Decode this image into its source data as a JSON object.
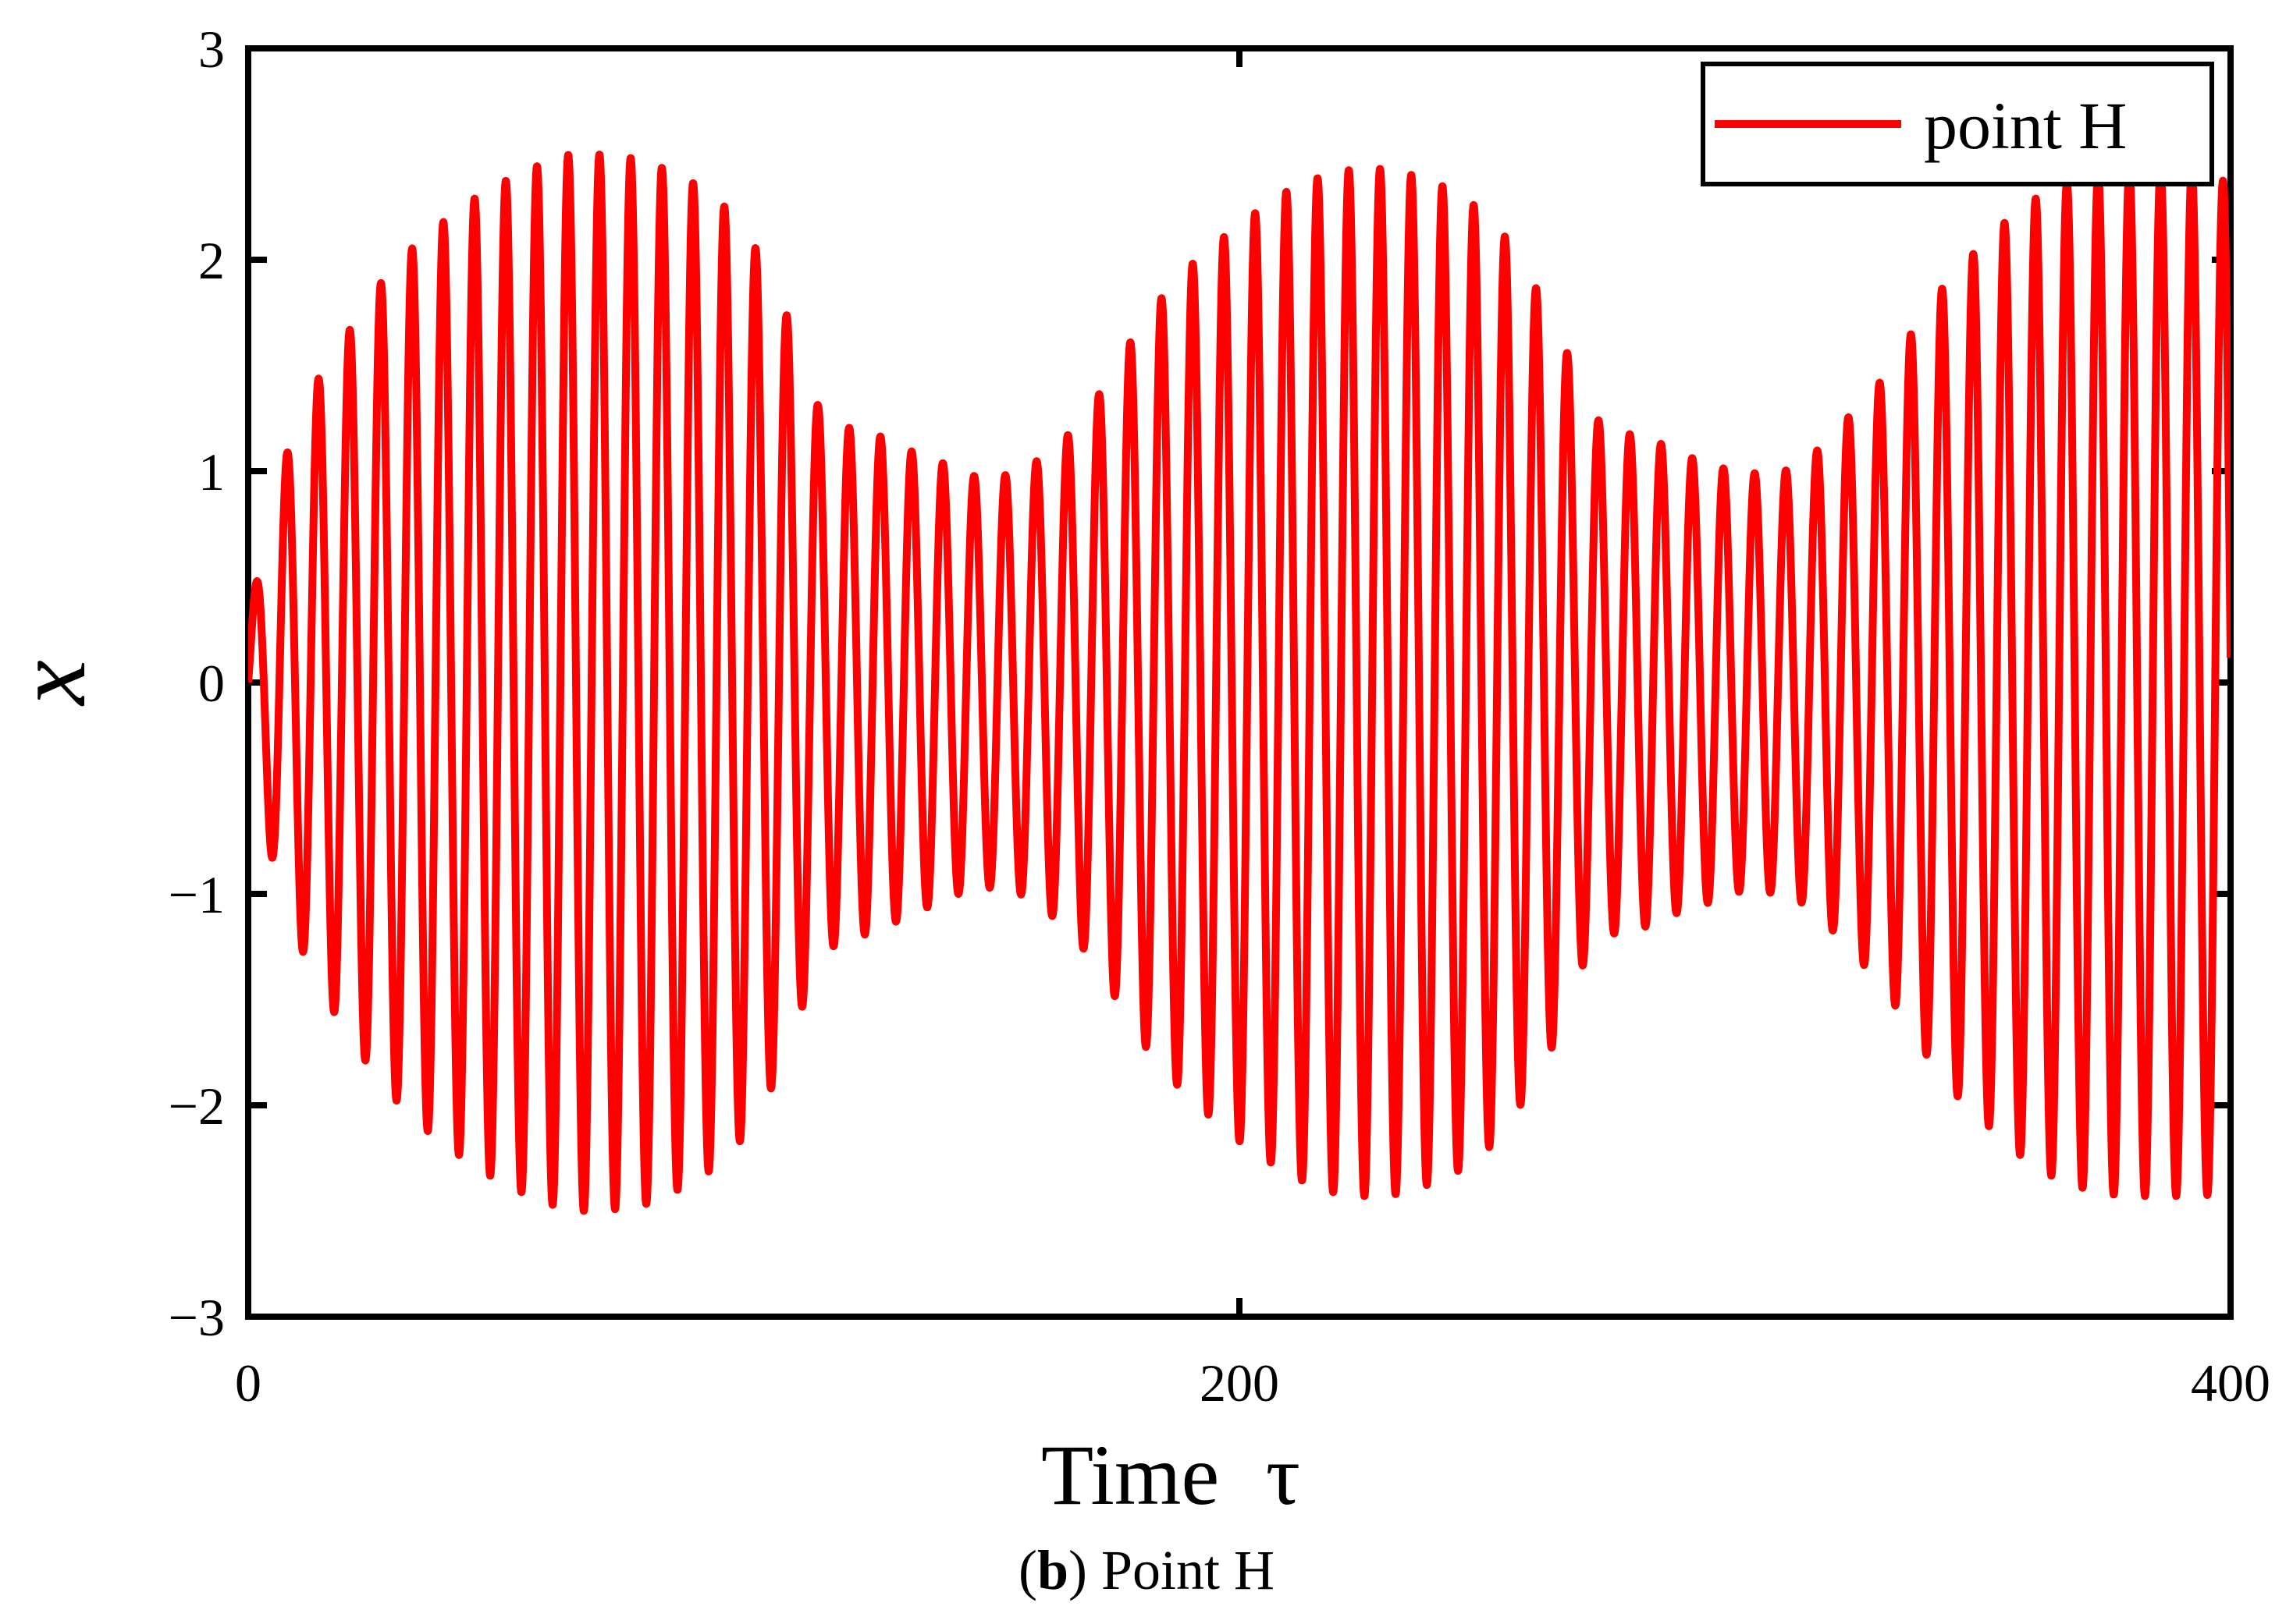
{
  "chart_data": {
    "type": "line",
    "title": "",
    "xlabel": "Time",
    "xlabel_symbol": "τ",
    "ylabel": "x",
    "xlim": [
      0,
      400
    ],
    "ylim": [
      -3,
      3
    ],
    "xticks": [
      0,
      200,
      400
    ],
    "yticks": [
      -3,
      -2,
      -1,
      0,
      1,
      2,
      3
    ],
    "xtick_labels": [
      "0",
      "200",
      "400"
    ],
    "ytick_labels": [
      "−3",
      "−2",
      "−1",
      "0",
      "1",
      "2",
      "3"
    ],
    "grid": false,
    "legend_position": "top-right",
    "series": [
      {
        "name": "point H",
        "color": "#ff0000",
        "x": [
          0,
          3,
          6,
          10,
          15,
          20,
          25,
          30,
          35,
          40,
          45,
          50,
          55,
          60,
          65,
          70,
          75,
          80,
          85,
          90,
          95,
          100,
          105,
          110,
          115,
          120,
          125,
          130,
          135,
          140,
          145,
          150,
          155,
          160,
          165,
          170,
          175,
          180,
          185,
          190,
          195,
          200,
          205,
          210,
          215,
          220,
          225,
          230,
          235,
          240,
          245,
          250,
          255,
          260,
          265,
          270,
          275,
          280,
          285,
          290,
          295,
          300,
          305,
          310,
          315,
          320,
          325,
          330,
          335,
          340,
          345,
          350,
          355,
          360,
          365,
          370,
          375,
          380,
          385,
          390,
          395,
          400
        ],
        "amplitude": [
          0.3,
          0.62,
          0.97,
          1.22,
          1.48,
          1.65,
          1.84,
          1.98,
          2.1,
          2.19,
          2.28,
          2.35,
          2.41,
          2.46,
          2.5,
          2.5,
          2.49,
          2.47,
          2.42,
          2.36,
          2.28,
          2.15,
          1.95,
          1.66,
          1.31,
          1.21,
          1.19,
          1.14,
          1.08,
          1.04,
          0.98,
          0.97,
          0.99,
          1.06,
          1.16,
          1.3,
          1.49,
          1.69,
          1.84,
          1.97,
          2.07,
          2.17,
          2.25,
          2.33,
          2.38,
          2.42,
          2.43,
          2.43,
          2.4,
          2.36,
          2.3,
          2.21,
          2.07,
          1.86,
          1.64,
          1.29,
          1.19,
          1.17,
          1.13,
          1.07,
          1.04,
          0.99,
          0.99,
          1.0,
          1.06,
          1.18,
          1.31,
          1.44,
          1.63,
          1.81,
          1.96,
          2.07,
          2.19,
          2.28,
          2.35,
          2.39,
          2.42,
          2.43,
          2.43,
          2.43,
          2.43,
          2.35
        ],
        "oscillation_period": 6.3,
        "num_cycles": 64
      }
    ]
  },
  "caption": {
    "label": "b",
    "text": "Point H"
  }
}
